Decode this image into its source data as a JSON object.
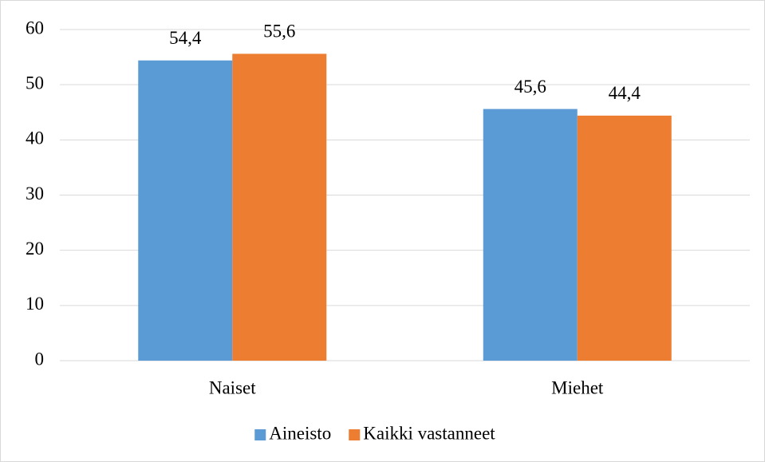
{
  "chart_data": {
    "type": "bar",
    "categories": [
      "Naiset",
      "Miehet"
    ],
    "series": [
      {
        "name": "Aineisto",
        "color": "#5b9bd5",
        "values": [
          54.4,
          45.6
        ],
        "value_labels": [
          "54,4",
          "45,6"
        ]
      },
      {
        "name": "Kaikki vastanneet",
        "color": "#ed7d31",
        "values": [
          55.6,
          44.4
        ],
        "value_labels": [
          "55,6",
          "44,4"
        ]
      }
    ],
    "ylim": [
      0,
      60
    ],
    "yticks": [
      0,
      10,
      20,
      30,
      40,
      50,
      60
    ],
    "grid": true,
    "legend": "bottom"
  }
}
